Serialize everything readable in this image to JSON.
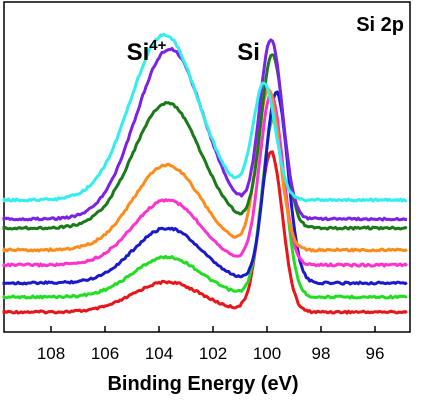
{
  "chart_data": {
    "type": "line",
    "title": "",
    "panel_label": "Si 2p",
    "xlabel": "Binding Energy (eV)",
    "ylabel": "",
    "x_reversed": true,
    "xlim": [
      110,
      94.8
    ],
    "x_ticks": [
      108,
      106,
      104,
      102,
      100,
      98,
      96
    ],
    "y_ticks_visible": false,
    "grid": false,
    "annotations": [
      {
        "base": "Si",
        "sup": "4+",
        "x": 105.2
      },
      {
        "base": "Si",
        "sup": "",
        "x": 101.1
      }
    ],
    "series": [
      {
        "color": "#e8161a",
        "offset": 0,
        "p1": {
          "center": 103.7,
          "height": 30,
          "width": 1.25
        },
        "p2": {
          "center": 99.85,
          "height": 160,
          "width": 0.42
        }
      },
      {
        "color": "#22dd22",
        "offset": 15,
        "p1": {
          "center": 103.7,
          "height": 40,
          "width": 1.25
        },
        "p2": {
          "center": 99.75,
          "height": 180,
          "width": 0.42
        }
      },
      {
        "color": "#1a1acc",
        "offset": 29,
        "p1": {
          "center": 103.7,
          "height": 55,
          "width": 1.25
        },
        "p2": {
          "center": 99.65,
          "height": 191,
          "width": 0.42
        }
      },
      {
        "color": "#ff33cc",
        "offset": 47,
        "p1": {
          "center": 103.7,
          "height": 65,
          "width": 1.25
        },
        "p2": {
          "center": 99.85,
          "height": 170,
          "width": 0.42
        }
      },
      {
        "color": "#ff8c1a",
        "offset": 62,
        "p1": {
          "center": 103.7,
          "height": 85,
          "width": 1.25
        },
        "p2": {
          "center": 99.95,
          "height": 160,
          "width": 0.42
        }
      },
      {
        "color": "#1a7a1a",
        "offset": 84,
        "p1": {
          "center": 103.7,
          "height": 125,
          "width": 1.25
        },
        "p2": {
          "center": 99.8,
          "height": 173,
          "width": 0.42
        }
      },
      {
        "color": "#7a22e8",
        "offset": 93,
        "p1": {
          "center": 103.6,
          "height": 170,
          "width": 1.25
        },
        "p2": {
          "center": 99.85,
          "height": 178,
          "width": 0.42
        }
      },
      {
        "color": "#33eeee",
        "offset": 112,
        "p1": {
          "center": 103.8,
          "height": 165,
          "width": 1.25
        },
        "p2": {
          "center": 100.1,
          "height": 115,
          "width": 0.42
        }
      }
    ]
  }
}
